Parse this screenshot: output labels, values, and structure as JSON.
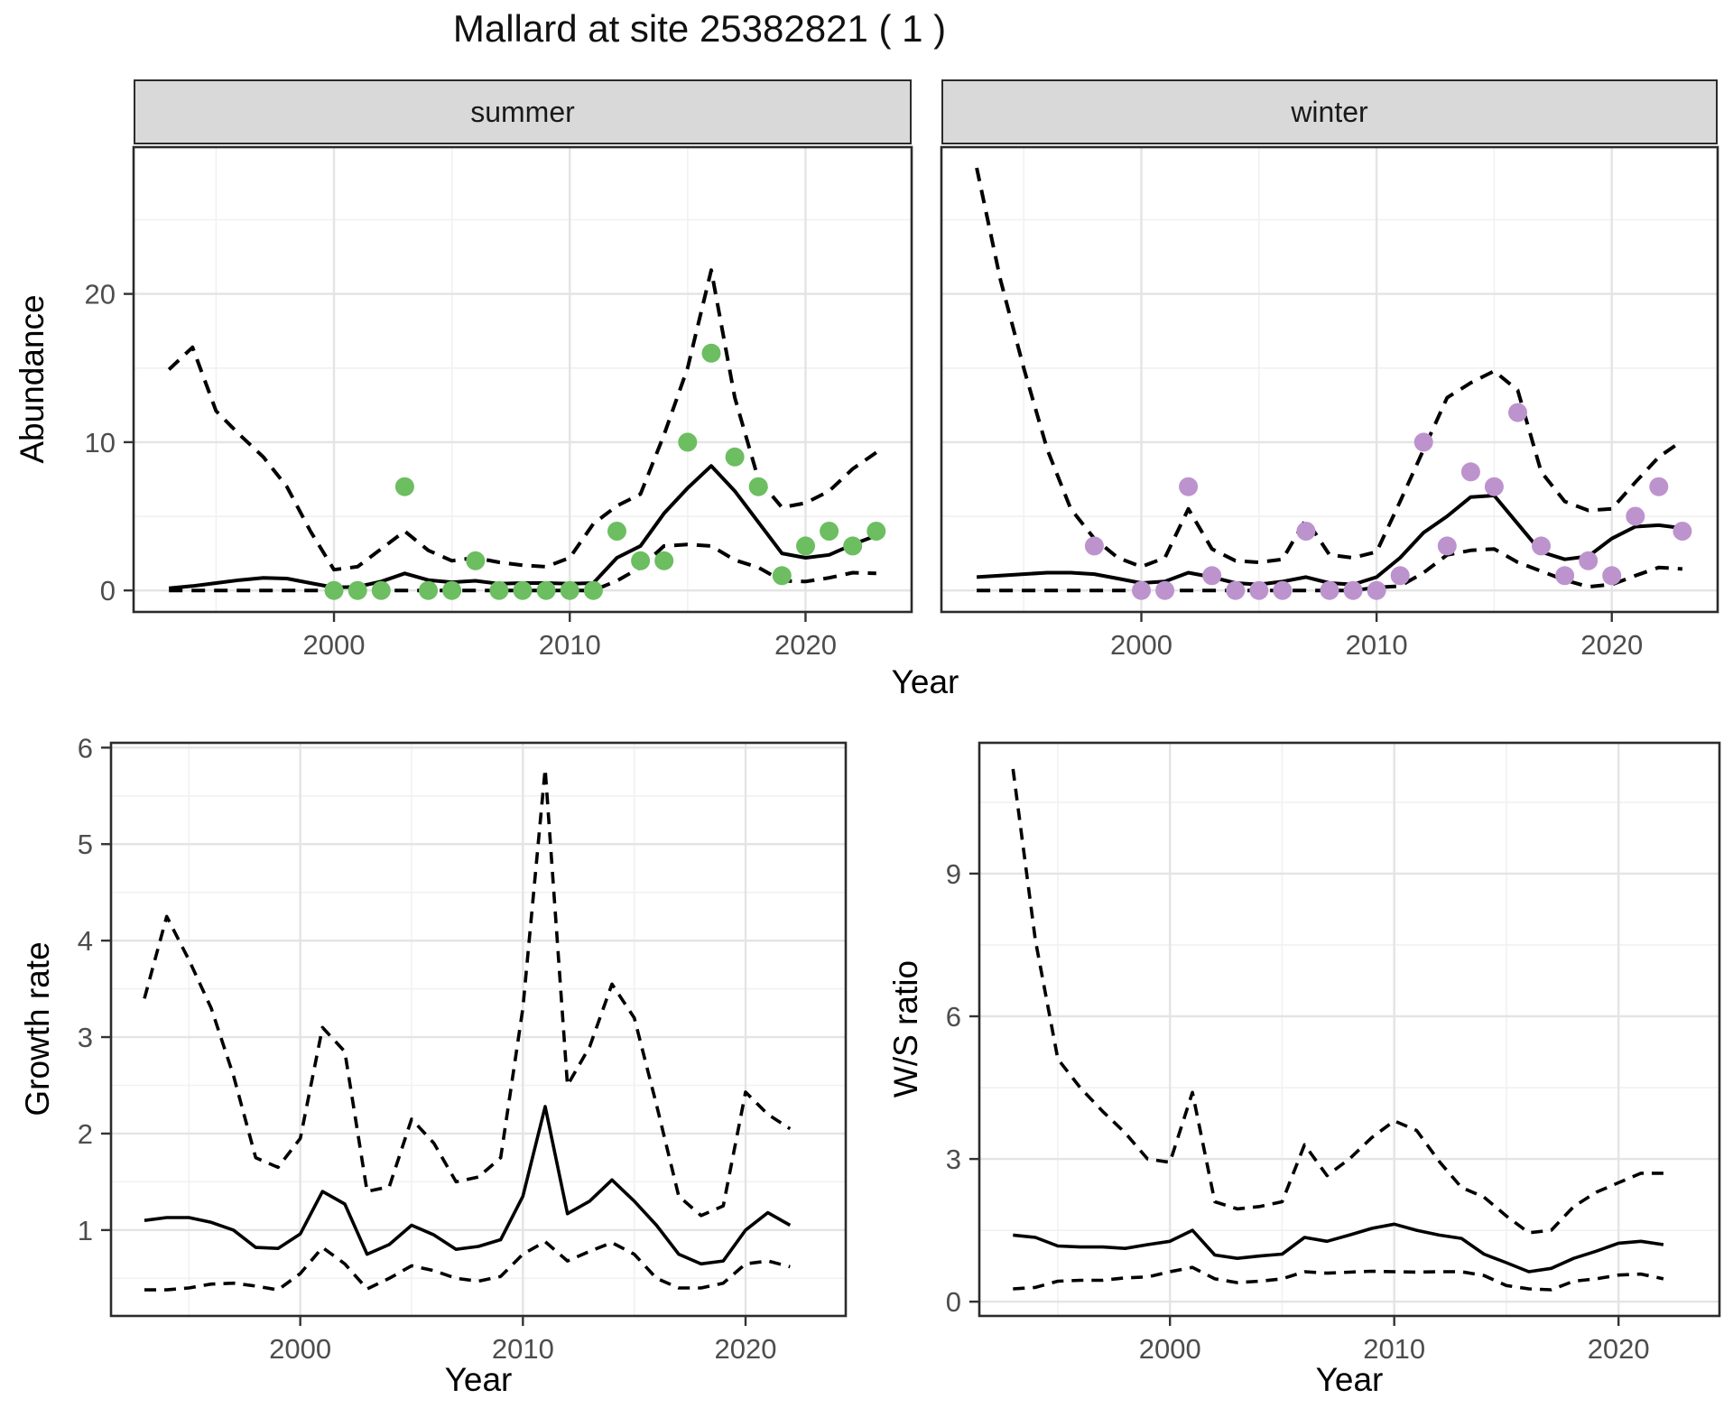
{
  "title": "Mallard at site 25382821 ( 1 )",
  "colors": {
    "summer_point": "#6cbe61",
    "winter_point": "#bd93ce",
    "line": "#000000",
    "grid_major": "#e4e4e4",
    "grid_minor": "#f1f1f1",
    "strip_bg": "#d9d9d9",
    "panel_border": "#2b2b2b",
    "tick_text": "#4d4d4d"
  },
  "top_row": {
    "y_label": "Abundance",
    "x_label": "Year",
    "facets": [
      {
        "label": "summer"
      },
      {
        "label": "winter"
      }
    ]
  },
  "bottom_row": {
    "left": {
      "y_label": "Growth rate",
      "x_label": "Year"
    },
    "right": {
      "y_label": "W/S ratio",
      "x_label": "Year"
    }
  },
  "chart_data": [
    {
      "id": "abundance-summer",
      "type": "line",
      "facet": "summer",
      "ylabel": "Abundance",
      "xlabel": "Year",
      "x_domain": [
        1991.5,
        2024.5
      ],
      "y_domain": [
        -1.45,
        29.9
      ],
      "x_ticks": [
        2000,
        2010,
        2020
      ],
      "x_minor": [
        1995,
        2005,
        2015
      ],
      "y_ticks": [
        0,
        10,
        20
      ],
      "y_minor": [
        5,
        15,
        25
      ],
      "show_y_tick_labels": true,
      "years": [
        1993,
        1994,
        1995,
        1996,
        1997,
        1998,
        1999,
        2000,
        2001,
        2002,
        2003,
        2004,
        2005,
        2006,
        2007,
        2008,
        2009,
        2010,
        2011,
        2012,
        2013,
        2014,
        2015,
        2016,
        2017,
        2018,
        2019,
        2020,
        2021,
        2022,
        2023
      ],
      "series": [
        {
          "name": "fit",
          "style": "solid",
          "values": [
            0.15,
            0.3,
            0.5,
            0.7,
            0.85,
            0.8,
            0.5,
            0.2,
            0.25,
            0.6,
            1.15,
            0.7,
            0.55,
            0.65,
            0.45,
            0.5,
            0.5,
            0.45,
            0.5,
            2.2,
            3.0,
            5.2,
            6.9,
            8.4,
            6.7,
            4.6,
            2.5,
            2.2,
            2.4,
            3.1,
            3.7
          ]
        },
        {
          "name": "upper_ci",
          "style": "dashed",
          "values": [
            14.9,
            16.4,
            12.1,
            10.5,
            9.0,
            7.0,
            4.0,
            1.4,
            1.6,
            2.8,
            4.0,
            2.7,
            2.0,
            2.2,
            1.9,
            1.7,
            1.6,
            2.2,
            4.5,
            5.7,
            6.5,
            10.5,
            15.0,
            21.6,
            13.0,
            7.5,
            5.6,
            5.9,
            6.7,
            8.2,
            9.3
          ]
        },
        {
          "name": "lower_ci",
          "style": "dashed",
          "values": [
            0,
            0,
            0,
            0,
            0,
            0,
            0,
            0,
            0,
            0,
            0,
            0,
            0,
            0,
            0,
            0,
            0,
            0,
            0,
            0.65,
            1.55,
            3.0,
            3.1,
            3.0,
            2.05,
            1.55,
            0.65,
            0.6,
            0.85,
            1.2,
            1.15
          ]
        }
      ],
      "points": {
        "name": "summer observations",
        "color_key": "summer_point",
        "years": [
          2000,
          2001,
          2002,
          2003,
          2004,
          2005,
          2006,
          2007,
          2008,
          2009,
          2010,
          2011,
          2012,
          2013,
          2014,
          2015,
          2016,
          2017,
          2018,
          2019,
          2020,
          2021,
          2022,
          2023
        ],
        "values": [
          0,
          0,
          0,
          7,
          0,
          0,
          2,
          0,
          0,
          0,
          0,
          0,
          4,
          2,
          2,
          10,
          16,
          9,
          7,
          1,
          3,
          4,
          3,
          4
        ]
      }
    },
    {
      "id": "abundance-winter",
      "type": "line",
      "facet": "winter",
      "ylabel": "Abundance",
      "xlabel": "Year",
      "x_domain": [
        1991.5,
        2024.5
      ],
      "y_domain": [
        -1.45,
        29.9
      ],
      "x_ticks": [
        2000,
        2010,
        2020
      ],
      "x_minor": [
        1995,
        2005,
        2015
      ],
      "y_ticks": [
        0,
        10,
        20
      ],
      "y_minor": [
        5,
        15,
        25
      ],
      "show_y_tick_labels": false,
      "years": [
        1993,
        1994,
        1995,
        1996,
        1997,
        1998,
        1999,
        2000,
        2001,
        2002,
        2003,
        2004,
        2005,
        2006,
        2007,
        2008,
        2009,
        2010,
        2011,
        2012,
        2013,
        2014,
        2015,
        2016,
        2017,
        2018,
        2019,
        2020,
        2021,
        2022,
        2023
      ],
      "series": [
        {
          "name": "fit",
          "style": "solid",
          "values": [
            0.9,
            1.0,
            1.1,
            1.2,
            1.2,
            1.1,
            0.8,
            0.5,
            0.6,
            1.2,
            0.9,
            0.5,
            0.4,
            0.6,
            0.9,
            0.5,
            0.4,
            0.9,
            2.2,
            3.9,
            5.0,
            6.3,
            6.4,
            4.5,
            2.6,
            2.1,
            2.3,
            3.5,
            4.3,
            4.4,
            4.2
          ]
        },
        {
          "name": "upper_ci",
          "style": "dashed",
          "values": [
            28.5,
            21.0,
            15.0,
            9.5,
            5.5,
            3.5,
            2.2,
            1.6,
            2.2,
            5.5,
            2.8,
            2.0,
            1.9,
            2.1,
            4.8,
            2.4,
            2.2,
            2.6,
            6.0,
            9.5,
            13.0,
            14.0,
            14.8,
            13.5,
            8.0,
            6.0,
            5.4,
            5.5,
            7.3,
            9.0,
            10.1
          ]
        },
        {
          "name": "lower_ci",
          "style": "dashed",
          "values": [
            0,
            0,
            0,
            0,
            0,
            0,
            0,
            0,
            0,
            0,
            0,
            0,
            0,
            0,
            0,
            0,
            0,
            0.2,
            0.3,
            1.2,
            2.4,
            2.7,
            2.8,
            1.9,
            1.3,
            0.7,
            0.25,
            0.4,
            1.0,
            1.55,
            1.45
          ]
        }
      ],
      "points": {
        "name": "winter observations",
        "color_key": "winter_point",
        "years": [
          1998,
          2000,
          2001,
          2002,
          2003,
          2004,
          2005,
          2006,
          2007,
          2008,
          2009,
          2010,
          2011,
          2012,
          2013,
          2014,
          2015,
          2016,
          2017,
          2018,
          2019,
          2020,
          2021,
          2022,
          2023
        ],
        "values": [
          3,
          0,
          0,
          7,
          1,
          0,
          0,
          0,
          4,
          0,
          0,
          0,
          1,
          10,
          3,
          8,
          7,
          12,
          3,
          1,
          2,
          1,
          5,
          7,
          4
        ]
      }
    },
    {
      "id": "growth-rate",
      "type": "line",
      "facet": null,
      "ylabel": "Growth rate",
      "xlabel": "Year",
      "x_domain": [
        1991.5,
        2024.5
      ],
      "y_domain": [
        0.11,
        6.05
      ],
      "x_ticks": [
        2000,
        2010,
        2020
      ],
      "x_minor": [
        1995,
        2005,
        2015
      ],
      "y_ticks": [
        1,
        2,
        3,
        4,
        5,
        6
      ],
      "y_minor": [
        0.5,
        1.5,
        2.5,
        3.5,
        4.5,
        5.5
      ],
      "show_y_tick_labels": true,
      "years": [
        1993,
        1994,
        1995,
        1996,
        1997,
        1998,
        1999,
        2000,
        2001,
        2002,
        2003,
        2004,
        2005,
        2006,
        2007,
        2008,
        2009,
        2010,
        2011,
        2012,
        2013,
        2014,
        2015,
        2016,
        2017,
        2018,
        2019,
        2020,
        2021,
        2022
      ],
      "series": [
        {
          "name": "fit",
          "style": "solid",
          "values": [
            1.1,
            1.13,
            1.13,
            1.08,
            1.0,
            0.82,
            0.81,
            0.96,
            1.4,
            1.27,
            0.75,
            0.85,
            1.05,
            0.95,
            0.8,
            0.83,
            0.9,
            1.35,
            2.28,
            1.17,
            1.3,
            1.52,
            1.3,
            1.05,
            0.75,
            0.65,
            0.68,
            1.0,
            1.18,
            1.05
          ]
        },
        {
          "name": "upper_ci",
          "style": "dashed",
          "values": [
            3.4,
            4.25,
            3.8,
            3.3,
            2.6,
            1.75,
            1.65,
            1.95,
            3.1,
            2.85,
            1.4,
            1.45,
            2.15,
            1.9,
            1.5,
            1.55,
            1.75,
            3.3,
            5.78,
            2.5,
            2.9,
            3.55,
            3.2,
            2.3,
            1.35,
            1.15,
            1.25,
            2.43,
            2.2,
            2.05
          ]
        },
        {
          "name": "lower_ci",
          "style": "dashed",
          "values": [
            0.38,
            0.38,
            0.4,
            0.44,
            0.45,
            0.42,
            0.38,
            0.55,
            0.82,
            0.65,
            0.39,
            0.5,
            0.63,
            0.58,
            0.5,
            0.47,
            0.52,
            0.75,
            0.88,
            0.68,
            0.78,
            0.87,
            0.75,
            0.5,
            0.4,
            0.4,
            0.45,
            0.65,
            0.68,
            0.62
          ]
        }
      ],
      "points": null
    },
    {
      "id": "ws-ratio",
      "type": "line",
      "facet": null,
      "ylabel": "W/S ratio",
      "xlabel": "Year",
      "x_domain": [
        1991.5,
        2024.5
      ],
      "y_domain": [
        -0.3,
        11.75
      ],
      "x_ticks": [
        2000,
        2010,
        2020
      ],
      "x_minor": [
        1995,
        2005,
        2015
      ],
      "y_ticks": [
        0,
        3,
        6,
        9
      ],
      "y_minor": [
        1.5,
        4.5,
        7.5,
        10.5
      ],
      "show_y_tick_labels": true,
      "years": [
        1993,
        1994,
        1995,
        1996,
        1997,
        1998,
        1999,
        2000,
        2001,
        2002,
        2003,
        2004,
        2005,
        2006,
        2007,
        2008,
        2009,
        2010,
        2011,
        2012,
        2013,
        2014,
        2015,
        2016,
        2017,
        2018,
        2019,
        2020,
        2021,
        2022
      ],
      "series": [
        {
          "name": "fit",
          "style": "solid",
          "values": [
            1.4,
            1.35,
            1.17,
            1.15,
            1.15,
            1.12,
            1.2,
            1.27,
            1.5,
            0.98,
            0.91,
            0.96,
            1.0,
            1.35,
            1.27,
            1.4,
            1.54,
            1.63,
            1.5,
            1.4,
            1.33,
            1.0,
            0.82,
            0.63,
            0.7,
            0.91,
            1.06,
            1.23,
            1.27,
            1.2
          ]
        },
        {
          "name": "upper_ci",
          "style": "dashed",
          "values": [
            11.2,
            7.6,
            5.1,
            4.5,
            4.0,
            3.55,
            3.0,
            2.93,
            4.4,
            2.1,
            1.95,
            2.0,
            2.1,
            3.3,
            2.65,
            3.0,
            3.45,
            3.8,
            3.6,
            2.95,
            2.4,
            2.2,
            1.8,
            1.45,
            1.5,
            2.0,
            2.3,
            2.5,
            2.7,
            2.7
          ]
        },
        {
          "name": "lower_ci",
          "style": "dashed",
          "values": [
            0.27,
            0.3,
            0.43,
            0.45,
            0.45,
            0.5,
            0.52,
            0.63,
            0.72,
            0.48,
            0.4,
            0.43,
            0.48,
            0.63,
            0.6,
            0.62,
            0.64,
            0.63,
            0.62,
            0.63,
            0.63,
            0.55,
            0.34,
            0.27,
            0.25,
            0.43,
            0.48,
            0.56,
            0.58,
            0.48
          ]
        }
      ],
      "points": null
    }
  ]
}
